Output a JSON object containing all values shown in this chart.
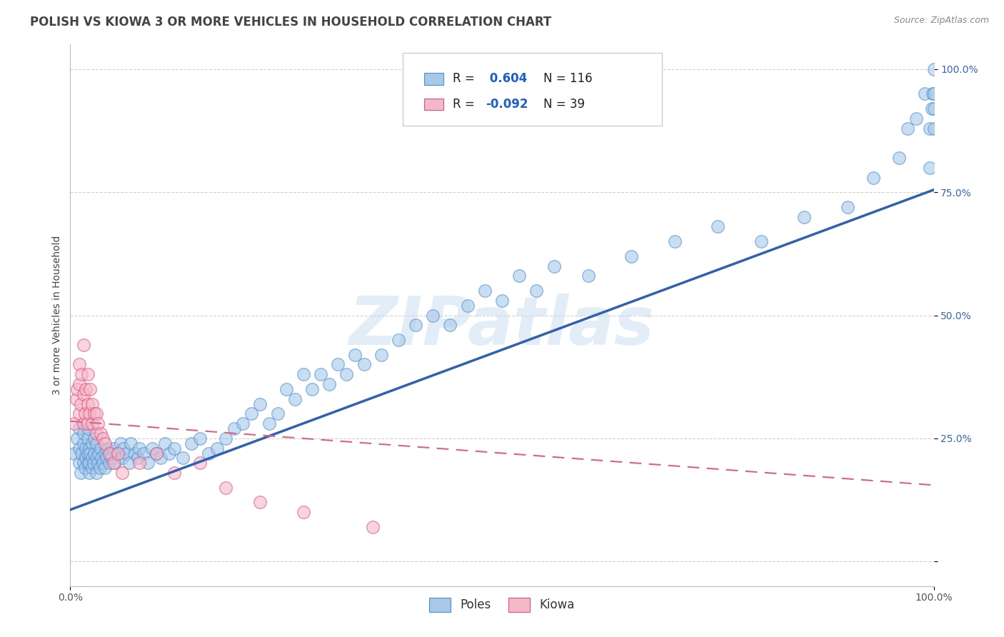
{
  "title": "POLISH VS KIOWA 3 OR MORE VEHICLES IN HOUSEHOLD CORRELATION CHART",
  "source": "Source: ZipAtlas.com",
  "ylabel": "3 or more Vehicles in Household",
  "xlim": [
    0,
    1.0
  ],
  "ylim": [
    -0.05,
    1.05
  ],
  "ytick_positions": [
    0.0,
    0.25,
    0.5,
    0.75,
    1.0
  ],
  "ytick_labels": [
    "",
    "25.0%",
    "50.0%",
    "75.0%",
    "100.0%"
  ],
  "poles_R": 0.604,
  "poles_N": 116,
  "kiowa_R": -0.092,
  "kiowa_N": 39,
  "poles_color": "#a8c8e8",
  "kiowa_color": "#f4b8c8",
  "poles_edge_color": "#4a90d4",
  "kiowa_edge_color": "#e05080",
  "poles_line_color": "#3060b0",
  "kiowa_line_color": "#e06080",
  "background_color": "#ffffff",
  "watermark": "ZIPatlas",
  "title_fontsize": 12,
  "axis_label_fontsize": 10,
  "tick_fontsize": 10,
  "legend_fontsize": 12,
  "poles_x": [
    0.005,
    0.008,
    0.01,
    0.01,
    0.01,
    0.012,
    0.013,
    0.015,
    0.015,
    0.015,
    0.017,
    0.018,
    0.018,
    0.02,
    0.02,
    0.02,
    0.02,
    0.022,
    0.022,
    0.022,
    0.023,
    0.025,
    0.025,
    0.025,
    0.027,
    0.028,
    0.028,
    0.03,
    0.03,
    0.03,
    0.032,
    0.033,
    0.034,
    0.035,
    0.036,
    0.038,
    0.04,
    0.04,
    0.042,
    0.043,
    0.045,
    0.047,
    0.048,
    0.05,
    0.052,
    0.055,
    0.058,
    0.06,
    0.062,
    0.065,
    0.068,
    0.07,
    0.075,
    0.078,
    0.08,
    0.085,
    0.09,
    0.095,
    0.1,
    0.105,
    0.11,
    0.115,
    0.12,
    0.13,
    0.14,
    0.15,
    0.16,
    0.17,
    0.18,
    0.19,
    0.2,
    0.21,
    0.22,
    0.23,
    0.24,
    0.25,
    0.26,
    0.27,
    0.28,
    0.29,
    0.3,
    0.31,
    0.32,
    0.33,
    0.34,
    0.36,
    0.38,
    0.4,
    0.42,
    0.44,
    0.46,
    0.48,
    0.5,
    0.52,
    0.54,
    0.56,
    0.6,
    0.65,
    0.7,
    0.75,
    0.8,
    0.85,
    0.9,
    0.93,
    0.96,
    0.97,
    0.98,
    0.99,
    0.995,
    0.995,
    0.998,
    0.999,
    1.0,
    1.0,
    1.0,
    1.0
  ],
  "poles_y": [
    0.22,
    0.25,
    0.2,
    0.23,
    0.27,
    0.18,
    0.22,
    0.24,
    0.2,
    0.26,
    0.19,
    0.21,
    0.23,
    0.2,
    0.22,
    0.25,
    0.27,
    0.18,
    0.2,
    0.23,
    0.22,
    0.19,
    0.21,
    0.24,
    0.2,
    0.22,
    0.25,
    0.18,
    0.21,
    0.24,
    0.2,
    0.22,
    0.19,
    0.23,
    0.21,
    0.2,
    0.19,
    0.22,
    0.21,
    0.23,
    0.2,
    0.22,
    0.21,
    0.23,
    0.2,
    0.22,
    0.24,
    0.21,
    0.23,
    0.22,
    0.2,
    0.24,
    0.22,
    0.21,
    0.23,
    0.22,
    0.2,
    0.23,
    0.22,
    0.21,
    0.24,
    0.22,
    0.23,
    0.21,
    0.24,
    0.25,
    0.22,
    0.23,
    0.25,
    0.27,
    0.28,
    0.3,
    0.32,
    0.28,
    0.3,
    0.35,
    0.33,
    0.38,
    0.35,
    0.38,
    0.36,
    0.4,
    0.38,
    0.42,
    0.4,
    0.42,
    0.45,
    0.48,
    0.5,
    0.48,
    0.52,
    0.55,
    0.53,
    0.58,
    0.55,
    0.6,
    0.58,
    0.62,
    0.65,
    0.68,
    0.65,
    0.7,
    0.72,
    0.78,
    0.82,
    0.88,
    0.9,
    0.95,
    0.8,
    0.88,
    0.92,
    0.95,
    0.88,
    0.95,
    0.92,
    1.0
  ],
  "kiowa_x": [
    0.005,
    0.007,
    0.008,
    0.01,
    0.01,
    0.01,
    0.012,
    0.013,
    0.015,
    0.015,
    0.015,
    0.017,
    0.018,
    0.02,
    0.02,
    0.02,
    0.022,
    0.023,
    0.025,
    0.025,
    0.028,
    0.03,
    0.03,
    0.032,
    0.035,
    0.038,
    0.04,
    0.045,
    0.05,
    0.055,
    0.06,
    0.08,
    0.1,
    0.12,
    0.15,
    0.18,
    0.22,
    0.27,
    0.35
  ],
  "kiowa_y": [
    0.28,
    0.33,
    0.35,
    0.3,
    0.36,
    0.4,
    0.32,
    0.38,
    0.28,
    0.34,
    0.44,
    0.3,
    0.35,
    0.28,
    0.32,
    0.38,
    0.3,
    0.35,
    0.28,
    0.32,
    0.3,
    0.26,
    0.3,
    0.28,
    0.26,
    0.25,
    0.24,
    0.22,
    0.2,
    0.22,
    0.18,
    0.2,
    0.22,
    0.18,
    0.2,
    0.15,
    0.12,
    0.1,
    0.07
  ],
  "poles_trend_x": [
    0.0,
    1.0
  ],
  "poles_trend_y": [
    0.105,
    0.755
  ],
  "kiowa_trend_x": [
    0.0,
    1.0
  ],
  "kiowa_trend_y": [
    0.285,
    0.155
  ]
}
